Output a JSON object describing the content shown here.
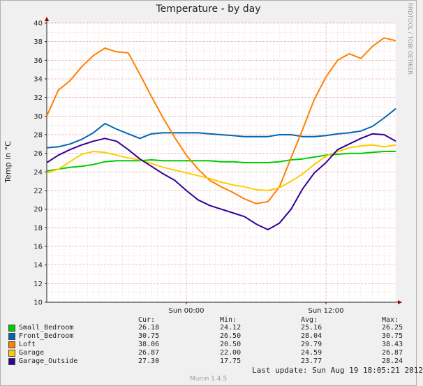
{
  "header": {
    "side_credit": "RRDTOOL / TOBI OETIKER",
    "footer": "Munin 1.4.5"
  },
  "chart_data": {
    "type": "line",
    "title": "Temperature - by day",
    "ylabel": "Temp in °C",
    "ylim": [
      10,
      40
    ],
    "yticks": [
      10,
      12,
      14,
      16,
      18,
      20,
      22,
      24,
      26,
      28,
      30,
      32,
      34,
      36,
      38,
      40
    ],
    "xlim": [
      -12,
      18
    ],
    "xticks": [
      {
        "x": 0,
        "label": "Sun 00:00"
      },
      {
        "x": 12,
        "label": "Sun 12:00"
      }
    ],
    "grid": true,
    "legend_position": "bottom",
    "x": [
      -12,
      -11,
      -10,
      -9,
      -8,
      -7,
      -6,
      -5,
      -4,
      -3,
      -2,
      -1,
      0,
      1,
      2,
      3,
      4,
      5,
      6,
      7,
      8,
      9,
      10,
      11,
      12,
      13,
      14,
      15,
      16,
      17,
      18
    ],
    "series": [
      {
        "name": "Small_Bedroom",
        "color": "#00cc00",
        "values": [
          24.1,
          24.3,
          24.5,
          24.6,
          24.8,
          25.1,
          25.2,
          25.2,
          25.2,
          25.3,
          25.2,
          25.2,
          25.2,
          25.2,
          25.2,
          25.1,
          25.1,
          25.0,
          25.0,
          25.0,
          25.1,
          25.3,
          25.4,
          25.6,
          25.8,
          25.9,
          26.0,
          26.0,
          26.1,
          26.2,
          26.2
        ]
      },
      {
        "name": "Front_Bedroom",
        "color": "#0066b3",
        "values": [
          26.6,
          26.7,
          27.0,
          27.5,
          28.2,
          29.2,
          28.6,
          28.1,
          27.6,
          28.1,
          28.2,
          28.2,
          28.2,
          28.2,
          28.1,
          28.0,
          27.9,
          27.8,
          27.8,
          27.8,
          28.0,
          28.0,
          27.8,
          27.8,
          27.9,
          28.1,
          28.2,
          28.4,
          28.9,
          29.8,
          30.8
        ]
      },
      {
        "name": "Loft",
        "color": "#ff8000",
        "values": [
          30.0,
          32.8,
          33.8,
          35.3,
          36.5,
          37.3,
          36.9,
          36.8,
          34.5,
          32.1,
          29.8,
          27.7,
          25.8,
          24.3,
          23.1,
          22.4,
          21.8,
          21.1,
          20.6,
          20.8,
          22.4,
          25.5,
          28.6,
          31.8,
          34.2,
          36.0,
          36.7,
          36.2,
          37.5,
          38.4,
          38.1
        ]
      },
      {
        "name": "Garage",
        "color": "#ffcc00",
        "values": [
          23.9,
          24.3,
          25.1,
          25.9,
          26.2,
          26.1,
          25.8,
          25.5,
          25.3,
          24.9,
          24.5,
          24.2,
          23.9,
          23.6,
          23.3,
          22.9,
          22.6,
          22.4,
          22.1,
          22.0,
          22.3,
          23.0,
          23.8,
          24.8,
          25.7,
          26.2,
          26.6,
          26.8,
          26.9,
          26.7,
          26.9
        ]
      },
      {
        "name": "Garage_Outside",
        "color": "#330099",
        "values": [
          25.0,
          25.8,
          26.4,
          26.9,
          27.3,
          27.6,
          27.3,
          26.4,
          25.4,
          24.6,
          23.8,
          23.1,
          22.0,
          21.0,
          20.4,
          20.0,
          19.6,
          19.2,
          18.4,
          17.8,
          18.5,
          20.0,
          22.2,
          23.9,
          25.0,
          26.4,
          27.0,
          27.6,
          28.1,
          28.0,
          27.3
        ]
      }
    ]
  },
  "legend": {
    "headers": {
      "cur": "Cur:",
      "min": "Min:",
      "avg": "Avg:",
      "max": "Max:"
    },
    "rows": [
      {
        "name": "Small_Bedroom",
        "color": "#00cc00",
        "cur": "26.18",
        "min": "24.12",
        "avg": "25.16",
        "max": "26.25"
      },
      {
        "name": "Front_Bedroom",
        "color": "#0066b3",
        "cur": "30.75",
        "min": "26.50",
        "avg": "28.04",
        "max": "30.75"
      },
      {
        "name": "Loft",
        "color": "#ff8000",
        "cur": "38.06",
        "min": "20.50",
        "avg": "29.79",
        "max": "38.43"
      },
      {
        "name": "Garage",
        "color": "#ffcc00",
        "cur": "26.87",
        "min": "22.00",
        "avg": "24.59",
        "max": "26.87"
      },
      {
        "name": "Garage_Outside",
        "color": "#330099",
        "cur": "27.30",
        "min": "17.75",
        "avg": "23.77",
        "max": "28.24"
      }
    ],
    "last_update": "Last update: Sun Aug 19 18:05:21 2012"
  }
}
